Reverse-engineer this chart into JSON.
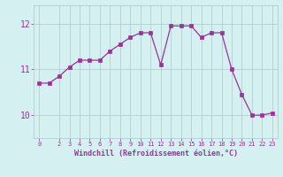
{
  "x": [
    0,
    1,
    2,
    3,
    4,
    5,
    6,
    7,
    8,
    9,
    10,
    11,
    12,
    13,
    14,
    15,
    16,
    17,
    18,
    19,
    20,
    21,
    22,
    23
  ],
  "y": [
    10.7,
    10.7,
    10.85,
    11.05,
    11.2,
    11.2,
    11.2,
    11.4,
    11.55,
    11.7,
    11.8,
    11.8,
    11.1,
    11.95,
    11.95,
    11.95,
    11.7,
    11.8,
    11.8,
    11.0,
    10.45,
    10.0,
    10.0,
    10.05
  ],
  "line_color": "#993399",
  "marker": "s",
  "marker_size": 2.5,
  "bg_color": "#d4f0f0",
  "grid_color": "#b0c8c8",
  "xlabel": "Windchill (Refroidissement éolien,°C)",
  "xlabel_color": "#993399",
  "tick_color": "#993399",
  "ylim": [
    9.5,
    12.4
  ],
  "xlim": [
    -0.5,
    23.5
  ],
  "yticks": [
    10,
    11,
    12
  ],
  "xticks": [
    0,
    2,
    3,
    4,
    5,
    6,
    7,
    8,
    9,
    10,
    11,
    12,
    13,
    14,
    15,
    16,
    17,
    18,
    19,
    20,
    21,
    22,
    23
  ],
  "figsize": [
    3.2,
    2.0
  ],
  "dpi": 100
}
